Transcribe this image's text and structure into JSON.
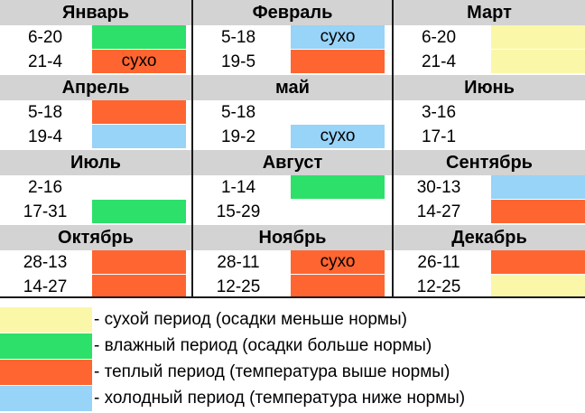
{
  "colors": {
    "dry": "#fbf7a8",
    "wet": "#2ce06a",
    "warm": "#ff6530",
    "cold": "#98d3f8",
    "none": "#ffffff",
    "header": "#d3d3d3",
    "range_bg": "#ffffff"
  },
  "months": [
    {
      "name": "Январь",
      "rows": [
        {
          "range": "6-20",
          "status": "wet",
          "label": ""
        },
        {
          "range": "21-4",
          "status": "warm",
          "label": "сухо"
        }
      ]
    },
    {
      "name": "Февраль",
      "rows": [
        {
          "range": "5-18",
          "status": "cold",
          "label": "сухо"
        },
        {
          "range": "19-5",
          "status": "warm",
          "label": ""
        }
      ]
    },
    {
      "name": "Март",
      "rows": [
        {
          "range": "6-20",
          "status": "dry",
          "label": ""
        },
        {
          "range": "21-4",
          "status": "dry",
          "label": ""
        }
      ]
    },
    {
      "name": "Апрель",
      "rows": [
        {
          "range": "5-18",
          "status": "warm",
          "label": ""
        },
        {
          "range": "19-4",
          "status": "cold",
          "label": ""
        }
      ]
    },
    {
      "name": "май",
      "rows": [
        {
          "range": "5-18",
          "status": "none",
          "label": ""
        },
        {
          "range": "19-2",
          "status": "cold",
          "label": "сухо"
        }
      ]
    },
    {
      "name": "Июнь",
      "rows": [
        {
          "range": "3-16",
          "status": "none",
          "label": ""
        },
        {
          "range": "17-1",
          "status": "none",
          "label": ""
        }
      ]
    },
    {
      "name": "Июль",
      "rows": [
        {
          "range": "2-16",
          "status": "none",
          "label": ""
        },
        {
          "range": "17-31",
          "status": "wet",
          "label": ""
        }
      ]
    },
    {
      "name": "Август",
      "rows": [
        {
          "range": "1-14",
          "status": "wet",
          "label": ""
        },
        {
          "range": "15-29",
          "status": "none",
          "label": ""
        }
      ]
    },
    {
      "name": "Сентябрь",
      "rows": [
        {
          "range": "30-13",
          "status": "cold",
          "label": ""
        },
        {
          "range": "14-27",
          "status": "warm",
          "label": ""
        }
      ]
    },
    {
      "name": "Октябрь",
      "rows": [
        {
          "range": "28-13",
          "status": "warm",
          "label": ""
        },
        {
          "range": "14-27",
          "status": "warm",
          "label": ""
        }
      ]
    },
    {
      "name": "Ноябрь",
      "rows": [
        {
          "range": "28-11",
          "status": "warm",
          "label": "сухо"
        },
        {
          "range": "12-25",
          "status": "warm",
          "label": ""
        }
      ]
    },
    {
      "name": "Декабрь",
      "rows": [
        {
          "range": "26-11",
          "status": "warm",
          "label": ""
        },
        {
          "range": "12-25",
          "status": "dry",
          "label": ""
        }
      ]
    }
  ],
  "legend": [
    {
      "status": "dry",
      "text": "- сухой период (осадки меньше нормы)"
    },
    {
      "status": "wet",
      "text": "- влажный период (осадки больше нормы)"
    },
    {
      "status": "warm",
      "text": "- теплый период (температура выше нормы)"
    },
    {
      "status": "cold",
      "text": "- холодный период (температура ниже нормы)"
    }
  ]
}
